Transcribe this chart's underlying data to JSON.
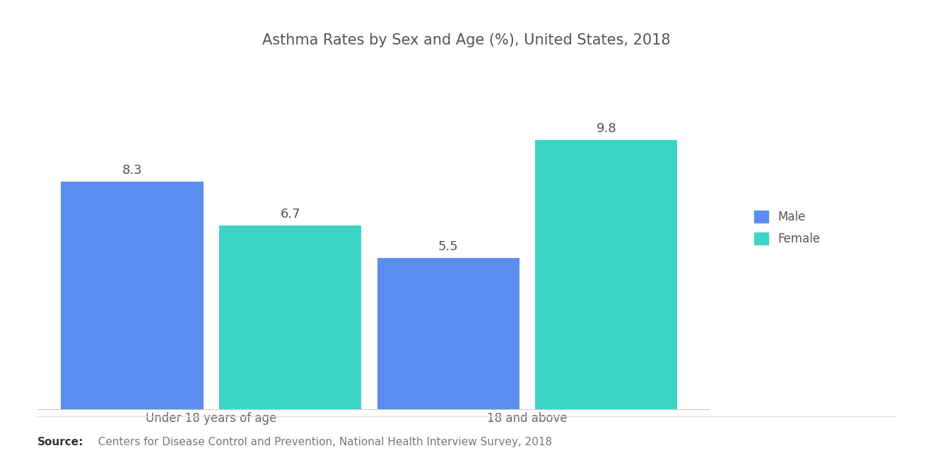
{
  "title": "Asthma Rates by Sex and Age (%), United States, 2018",
  "categories": [
    "Under 18 years of age",
    "18 and above"
  ],
  "male_values": [
    8.3,
    5.5
  ],
  "female_values": [
    6.7,
    9.8
  ],
  "male_color": "#5b8def",
  "female_color": "#3dd4c8",
  "background_color": "#ffffff",
  "legend_labels": [
    "Male",
    "Female"
  ],
  "source_bold": "Source:",
  "source_text": "  Centers for Disease Control and Prevention, National Health Interview Survey, 2018",
  "title_fontsize": 15,
  "label_fontsize": 12,
  "bar_value_fontsize": 13,
  "source_fontsize": 11,
  "ylim": [
    0,
    12
  ],
  "bar_width": 0.18,
  "group_positions": [
    0.22,
    0.62
  ]
}
